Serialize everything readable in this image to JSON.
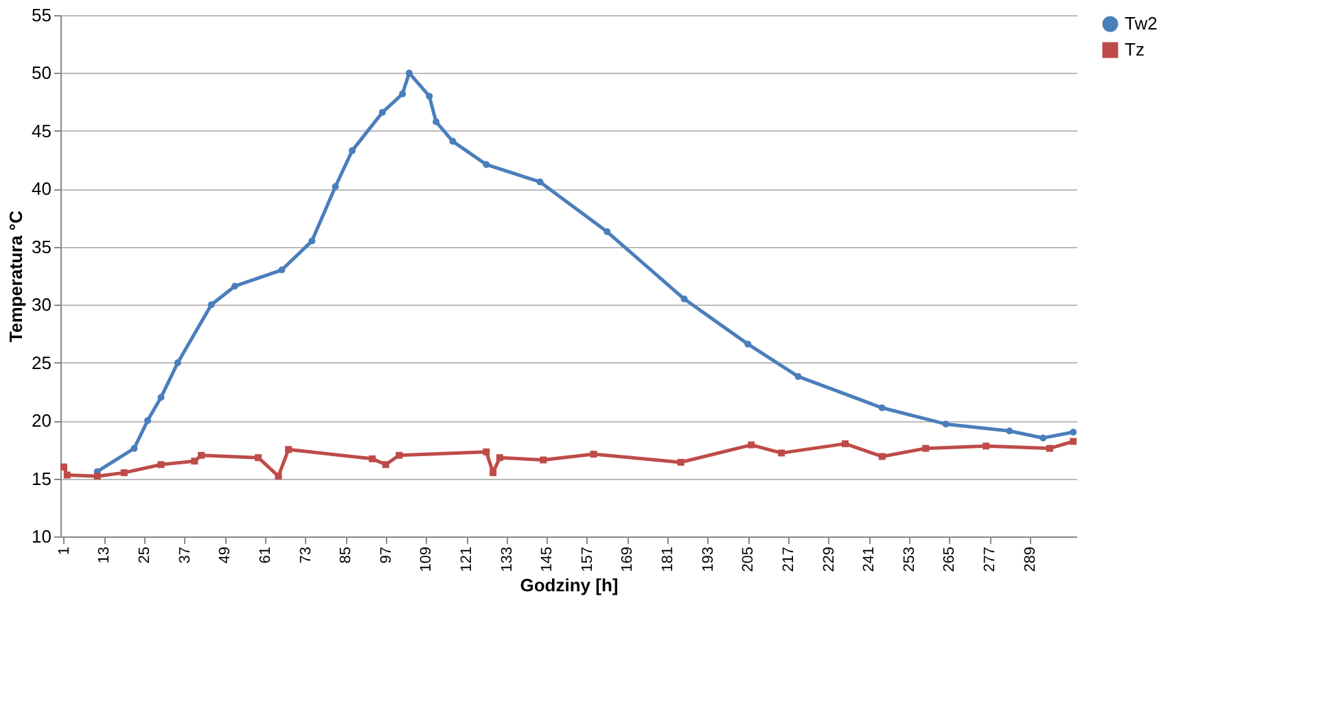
{
  "chart_data": {
    "type": "line",
    "xlabel": "Godziny [h]",
    "ylabel": "Temperatura °C",
    "xlim": [
      0,
      303
    ],
    "xticks": [
      1,
      13,
      25,
      37,
      49,
      61,
      73,
      85,
      97,
      109,
      121,
      133,
      145,
      157,
      169,
      181,
      193,
      205,
      217,
      229,
      241,
      253,
      265,
      277,
      289
    ],
    "ylim": [
      10,
      55
    ],
    "yticks": [
      10,
      15,
      20,
      25,
      30,
      35,
      40,
      45,
      50,
      55
    ],
    "grid": "y",
    "legend": "right",
    "series": [
      {
        "name": "Tw2",
        "color": "#4a7ebb",
        "marker": "circle",
        "x": [
          11,
          22,
          26,
          30,
          35,
          45,
          52,
          66,
          75,
          82,
          87,
          96,
          102,
          104,
          110,
          112,
          117,
          127,
          143,
          163,
          186,
          205,
          220,
          245,
          264,
          283,
          293,
          302
        ],
        "values": [
          15.6,
          17.6,
          20,
          22,
          25,
          30,
          31.6,
          33,
          35.5,
          40.2,
          43.3,
          46.6,
          48.2,
          50,
          48,
          45.8,
          44.1,
          42.1,
          40.6,
          36.3,
          30.5,
          26.6,
          23.8,
          21.1,
          19.7,
          19.1,
          18.5,
          19
        ]
      },
      {
        "name": "Tz",
        "color": "#be4b48",
        "marker": "square",
        "x": [
          1,
          2,
          11,
          19,
          30,
          40,
          42,
          59,
          65,
          68,
          93,
          97,
          101,
          127,
          129,
          131,
          144,
          159,
          185,
          206,
          215,
          234,
          245,
          258,
          276,
          295,
          302
        ],
        "values": [
          16,
          15.3,
          15.2,
          15.5,
          16.2,
          16.5,
          17,
          16.8,
          15.2,
          17.5,
          16.7,
          16.2,
          17,
          17.3,
          15.5,
          16.8,
          16.6,
          17.1,
          16.4,
          17.9,
          17.2,
          18,
          16.9,
          17.6,
          17.8,
          17.6,
          18.2
        ]
      }
    ]
  }
}
